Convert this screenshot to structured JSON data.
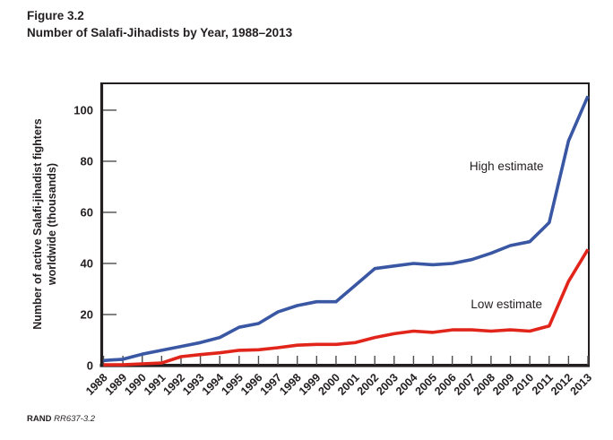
{
  "title": {
    "figure_label": "Figure 3.2",
    "figure_title": "Number of Salafi-Jihadists by Year, 1988–2013"
  },
  "footer": {
    "rand": "RAND",
    "doc_id": "RR637-3.2"
  },
  "colors": {
    "high_line": "#3a57a3",
    "low_line": "#e1251b",
    "axis": "#231f20",
    "tick": "#4d4d4f",
    "text": "#231f20"
  },
  "chart_data": {
    "type": "line",
    "title": "Number of Salafi-Jihadists by Year, 1988–2013",
    "xlabel": "",
    "ylabel": "Number of active Salafi-jihadist fighters worldwide (thousands)",
    "ylabel_lines": [
      "Number of active Salafi-jihadist fighters",
      "worldwide (thousands)"
    ],
    "x": [
      1988,
      1989,
      1990,
      1991,
      1992,
      1993,
      1994,
      1995,
      1996,
      1997,
      1998,
      1999,
      2000,
      2001,
      2002,
      2003,
      2004,
      2005,
      2006,
      2007,
      2008,
      2009,
      2010,
      2011,
      2012,
      2013
    ],
    "series": [
      {
        "name": "High estimate",
        "color": "#3a57a3",
        "values": [
          2,
          2.5,
          4.5,
          6,
          7.5,
          9,
          11,
          15,
          16.5,
          21,
          23.5,
          25,
          25,
          31.5,
          38,
          39,
          40,
          39.5,
          40,
          41.5,
          44,
          47,
          48.5,
          56,
          88,
          105.5
        ]
      },
      {
        "name": "Low estimate",
        "color": "#e1251b",
        "values": [
          0.3,
          0.3,
          0.7,
          1,
          3.5,
          4.3,
          5,
          6,
          6.2,
          7,
          8,
          8.3,
          8.3,
          9,
          11,
          12.5,
          13.5,
          13,
          14,
          14,
          13.5,
          14,
          13.5,
          15.5,
          33,
          45.5
        ]
      }
    ],
    "ylim": [
      0,
      110
    ],
    "y_ticks": [
      0,
      20,
      40,
      60,
      80,
      100
    ],
    "grid": false,
    "legend_position": "none",
    "annotations": [
      {
        "text": "High estimate",
        "year": 2008.8,
        "value": 78
      },
      {
        "text": "Low estimate",
        "year": 2008.8,
        "value": 24
      }
    ]
  }
}
